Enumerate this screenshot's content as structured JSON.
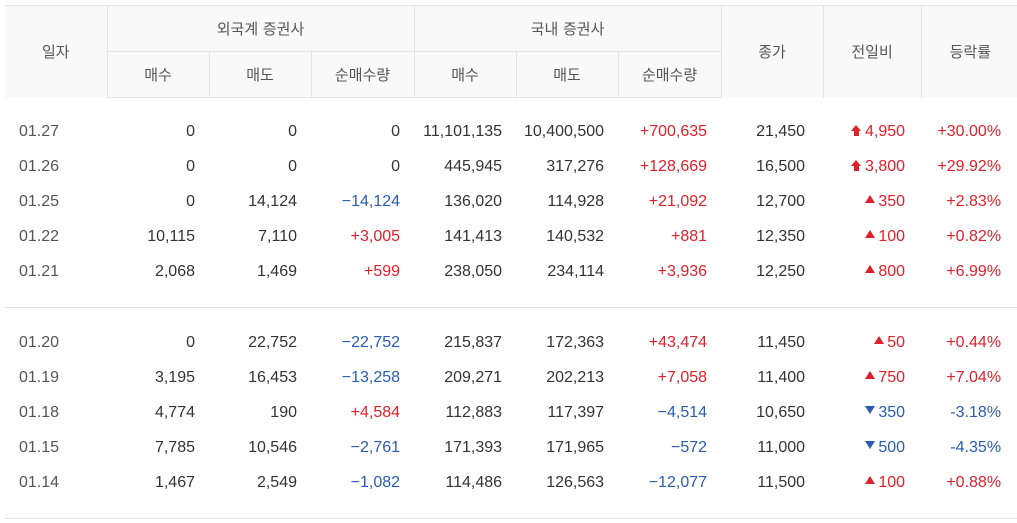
{
  "headers": {
    "date": "일자",
    "foreign": "외국계 증권사",
    "domestic": "국내 증권사",
    "close": "종가",
    "change": "전일비",
    "rate": "등락률",
    "buy": "매수",
    "sell": "매도",
    "net": "순매수량"
  },
  "rows": [
    {
      "date": "01.27",
      "f_buy": "0",
      "f_sell": "0",
      "f_net": "0",
      "f_net_dir": "",
      "d_buy": "11,101,135",
      "d_sell": "10,400,500",
      "d_net": "+700,635",
      "d_net_dir": "pos",
      "close": "21,450",
      "change": "4,950",
      "change_dir": "limit-up",
      "rate": "+30.00%",
      "rate_dir": "pos"
    },
    {
      "date": "01.26",
      "f_buy": "0",
      "f_sell": "0",
      "f_net": "0",
      "f_net_dir": "",
      "d_buy": "445,945",
      "d_sell": "317,276",
      "d_net": "+128,669",
      "d_net_dir": "pos",
      "close": "16,500",
      "change": "3,800",
      "change_dir": "limit-up",
      "rate": "+29.92%",
      "rate_dir": "pos"
    },
    {
      "date": "01.25",
      "f_buy": "0",
      "f_sell": "14,124",
      "f_net": "−14,124",
      "f_net_dir": "neg",
      "d_buy": "136,020",
      "d_sell": "114,928",
      "d_net": "+21,092",
      "d_net_dir": "pos",
      "close": "12,700",
      "change": "350",
      "change_dir": "up",
      "rate": "+2.83%",
      "rate_dir": "pos"
    },
    {
      "date": "01.22",
      "f_buy": "10,115",
      "f_sell": "7,110",
      "f_net": "+3,005",
      "f_net_dir": "pos",
      "d_buy": "141,413",
      "d_sell": "140,532",
      "d_net": "+881",
      "d_net_dir": "pos",
      "close": "12,350",
      "change": "100",
      "change_dir": "up",
      "rate": "+0.82%",
      "rate_dir": "pos"
    },
    {
      "date": "01.21",
      "f_buy": "2,068",
      "f_sell": "1,469",
      "f_net": "+599",
      "f_net_dir": "pos",
      "d_buy": "238,050",
      "d_sell": "234,114",
      "d_net": "+3,936",
      "d_net_dir": "pos",
      "close": "12,250",
      "change": "800",
      "change_dir": "up",
      "rate": "+6.99%",
      "rate_dir": "pos"
    },
    {
      "date": "01.20",
      "f_buy": "0",
      "f_sell": "22,752",
      "f_net": "−22,752",
      "f_net_dir": "neg",
      "d_buy": "215,837",
      "d_sell": "172,363",
      "d_net": "+43,474",
      "d_net_dir": "pos",
      "close": "11,450",
      "change": "50",
      "change_dir": "up",
      "rate": "+0.44%",
      "rate_dir": "pos"
    },
    {
      "date": "01.19",
      "f_buy": "3,195",
      "f_sell": "16,453",
      "f_net": "−13,258",
      "f_net_dir": "neg",
      "d_buy": "209,271",
      "d_sell": "202,213",
      "d_net": "+7,058",
      "d_net_dir": "pos",
      "close": "11,400",
      "change": "750",
      "change_dir": "up",
      "rate": "+7.04%",
      "rate_dir": "pos"
    },
    {
      "date": "01.18",
      "f_buy": "4,774",
      "f_sell": "190",
      "f_net": "+4,584",
      "f_net_dir": "pos",
      "d_buy": "112,883",
      "d_sell": "117,397",
      "d_net": "−4,514",
      "d_net_dir": "neg",
      "close": "10,650",
      "change": "350",
      "change_dir": "down",
      "rate": "-3.18%",
      "rate_dir": "neg"
    },
    {
      "date": "01.15",
      "f_buy": "7,785",
      "f_sell": "10,546",
      "f_net": "−2,761",
      "f_net_dir": "neg",
      "d_buy": "171,393",
      "d_sell": "171,965",
      "d_net": "−572",
      "d_net_dir": "neg",
      "close": "11,000",
      "change": "500",
      "change_dir": "down",
      "rate": "-4.35%",
      "rate_dir": "neg"
    },
    {
      "date": "01.14",
      "f_buy": "1,467",
      "f_sell": "2,549",
      "f_net": "−1,082",
      "f_net_dir": "neg",
      "d_buy": "114,486",
      "d_sell": "126,563",
      "d_net": "−12,077",
      "d_net_dir": "neg",
      "close": "11,500",
      "change": "100",
      "change_dir": "up",
      "rate": "+0.88%",
      "rate_dir": "pos"
    }
  ],
  "colors": {
    "up": "#e0202a",
    "down": "#2a5cb0"
  }
}
